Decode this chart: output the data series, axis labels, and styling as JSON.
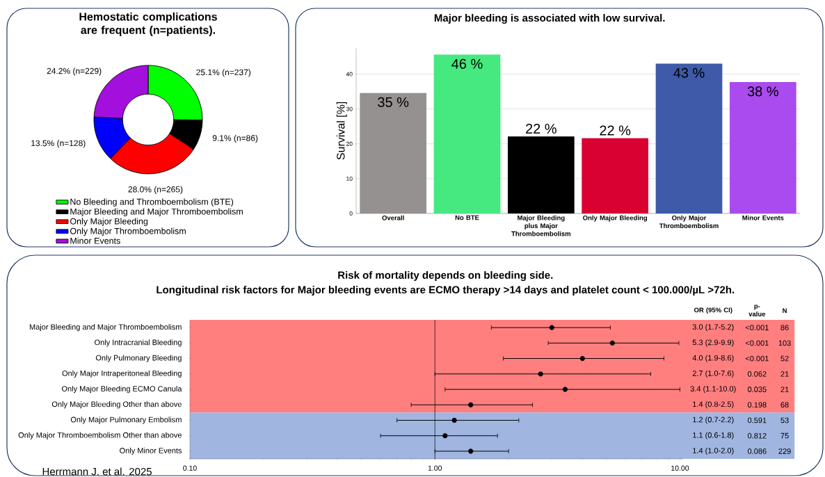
{
  "chart_data": [
    {
      "type": "donut",
      "title": "Hemostatic complications are frequent (n=patients).",
      "categories": [
        "No Bleeding and Thromboembolism (BTE)",
        "Major Bleeding and Major Thromboembolism",
        "Only Major Bleeding",
        "Only Major Thromboembolism",
        "Minor Events"
      ],
      "values": [
        25.1,
        9.1,
        28.0,
        13.5,
        24.2
      ],
      "value_labels": [
        "25.1% (n=237)",
        "9.1% (n=86)",
        "28.0% (n=265)",
        "13.5% (n=128)",
        "24.2% (n=229)"
      ],
      "colors": [
        "#00ff00",
        "#000000",
        "#ff0000",
        "#0000ff",
        "#a30fdc"
      ],
      "legend": "bottom"
    },
    {
      "type": "bar",
      "title": "Major bleeding is associated with low survival.",
      "ylabel": "Survival [%]",
      "categories": [
        "Overall",
        "No BTE",
        "Major Bleeding plus Major Thromboembolism",
        "Only Major Bleeding",
        "Only Major Thromboembolism",
        "Minor Events"
      ],
      "values": [
        34.6,
        45.6,
        22.1,
        21.6,
        43.0,
        37.7
      ],
      "value_labels": [
        "35 %",
        "46 %",
        "22 %",
        "22 %",
        "43 %",
        "38 %"
      ],
      "colors": [
        "#959190",
        "#45e97f",
        "#000000",
        "#d90032",
        "#3e5aa8",
        "#a94bef"
      ],
      "ylim": [
        0,
        47.5
      ],
      "yticks": [
        0,
        10,
        20,
        30,
        40
      ],
      "grid": "y"
    },
    {
      "type": "scatter",
      "orientation": "horizontal",
      "log": "x",
      "marker": "circle",
      "color": "#000000",
      "title": "Risk of mortality depends on bleeding side.",
      "subtitle": "Longitudinal risk factors for Major bleeding events are ECMO therapy >14 days and platelet count < 100.000/µL >72h.",
      "categories": [
        "Major Bleeding and Major Thromboembolism",
        "Only Intracranial Bleeding",
        "Only Pulmonary Bleeding",
        "Only Major Intraperitoneal Bleeding",
        "Only Major Bleeding ECMO Canula",
        "Only Major Bleeding Other than above",
        "Only Major Pulmonary Embolism",
        "Only Major Thromboembolism Other than above",
        "Only Minor Events"
      ],
      "values": [
        3.0,
        5.3,
        4.0,
        2.7,
        3.4,
        1.4,
        1.2,
        1.1,
        1.4
      ],
      "errors": [
        [
          1.7,
          5.2
        ],
        [
          2.9,
          9.9
        ],
        [
          1.9,
          8.6
        ],
        [
          1.0,
          7.6
        ],
        [
          1.1,
          10.0
        ],
        [
          0.8,
          2.5
        ],
        [
          0.7,
          2.2
        ],
        [
          0.6,
          1.8
        ],
        [
          1.0,
          2.0
        ]
      ],
      "value_labels": [
        "3.0 (1.7-5.2)",
        "5.3 (2.9-9.9)",
        "4.0 (1.9-8.6)",
        "2.7 (1.0-7.6)",
        "3.4 (1.1-10.0)",
        "1.4 (0.8-2.5)",
        "1.2 (0.7-2.2)",
        "1.1 (0.6-1.8)",
        "1.4 (1.0-2.0)"
      ],
      "xlim": [
        0.1,
        10.3
      ],
      "xticks": [
        {
          "value": 0.1,
          "label": "0.10"
        },
        {
          "value": 1,
          "label": "1.00"
        },
        {
          "value": 10,
          "label": "10.00"
        }
      ],
      "ref_lines": [
        {
          "axis": "x",
          "value": 1,
          "color": "#000000"
        }
      ],
      "bands": [
        {
          "axis": "y",
          "from": "Major Bleeding and Major Thromboembolism",
          "to": "Only Major Bleeding Other than above",
          "color": "#ff7f7f"
        },
        {
          "axis": "y",
          "from": "Only Major Pulmonary Embolism",
          "to": "Only Minor Events",
          "color": "#a0b6e0"
        }
      ],
      "annotations": [
        "OR (95% CI)",
        "p-value",
        "N",
        "<0.001",
        "86",
        "<0.001",
        "103",
        "<0.001",
        "52",
        "0.062",
        "21",
        "0.035",
        "21",
        "0.198",
        "68",
        "0.591",
        "53",
        "0.812",
        "75",
        "0.086",
        "229",
        "Herrmann J. et al. 2025"
      ]
    }
  ]
}
